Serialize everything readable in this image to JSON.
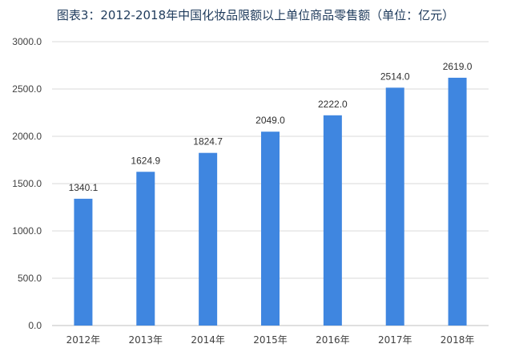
{
  "title": "图表3：2012-2018年中国化妆品限额以上单位商品零售额（单位：亿元）",
  "chart_data": {
    "type": "bar",
    "title": "图表3：2012-2018年中国化妆品限额以上单位商品零售额（单位：亿元）",
    "categories": [
      "2012年",
      "2013年",
      "2014年",
      "2015年",
      "2016年",
      "2017年",
      "2018年"
    ],
    "values": [
      1340.1,
      1624.9,
      1824.7,
      2049.0,
      2222.0,
      2514.0,
      2619.0
    ],
    "value_labels": [
      "1340.1",
      "1624.9",
      "1824.7",
      "2049.0",
      "2222.0",
      "2514.0",
      "2619.0"
    ],
    "ylim": [
      0,
      3000
    ],
    "yticks": [
      0,
      500,
      1000,
      1500,
      2000,
      2500,
      3000
    ],
    "ytick_labels": [
      "0.0",
      "500.0",
      "1000.0",
      "1500.0",
      "2000.0",
      "2500.0",
      "3000.0"
    ],
    "xlabel": "",
    "ylabel": "",
    "grid": true,
    "legend": "none",
    "bar_color": "#3f86e0",
    "grid_color": "#d9d9d9"
  }
}
